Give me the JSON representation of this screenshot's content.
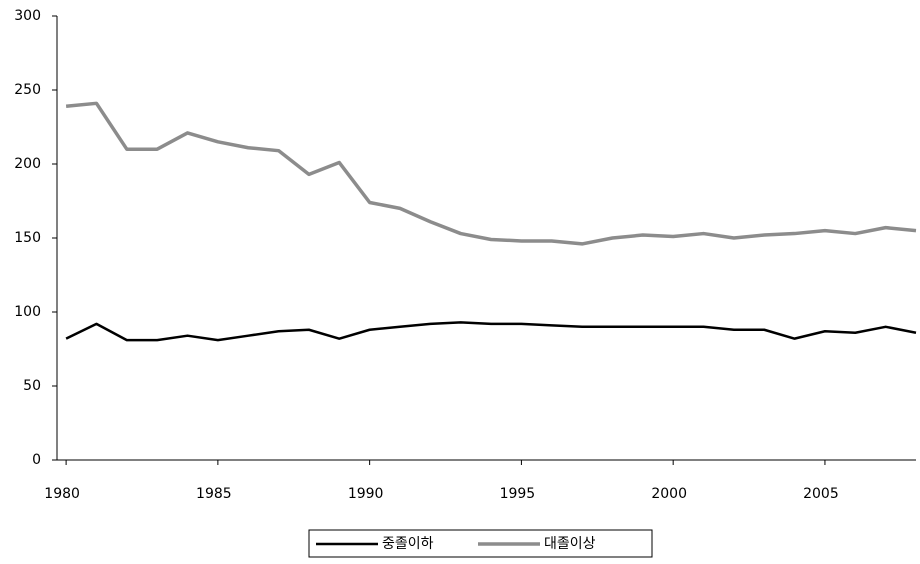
{
  "chart_data": {
    "type": "line",
    "x": [
      1980,
      1981,
      1982,
      1983,
      1984,
      1985,
      1986,
      1987,
      1988,
      1989,
      1990,
      1991,
      1992,
      1993,
      1994,
      1995,
      1996,
      1997,
      1998,
      1999,
      2000,
      2001,
      2002,
      2003,
      2004,
      2005,
      2006,
      2007,
      2008
    ],
    "series": [
      {
        "name": "중졸이하",
        "color": "#000000",
        "values": [
          82,
          92,
          81,
          81,
          84,
          81,
          84,
          87,
          88,
          82,
          88,
          90,
          92,
          93,
          92,
          92,
          91,
          90,
          90,
          90,
          90,
          90,
          88,
          88,
          82,
          87,
          86,
          90,
          86
        ]
      },
      {
        "name": "대졸이상",
        "color": "#8c8c8c",
        "values": [
          239,
          241,
          210,
          210,
          221,
          215,
          211,
          209,
          193,
          201,
          174,
          170,
          161,
          153,
          149,
          148,
          148,
          146,
          150,
          152,
          151,
          153,
          150,
          152,
          153,
          155,
          153,
          157,
          155
        ]
      }
    ],
    "xlim": [
      1979.7,
      2008
    ],
    "xticks": [
      1980,
      1985,
      1990,
      1995,
      2000,
      2005
    ],
    "ylim": [
      0,
      300
    ],
    "yticks": [
      0,
      50,
      100,
      150,
      200,
      250,
      300
    ],
    "legend": "bottom"
  }
}
